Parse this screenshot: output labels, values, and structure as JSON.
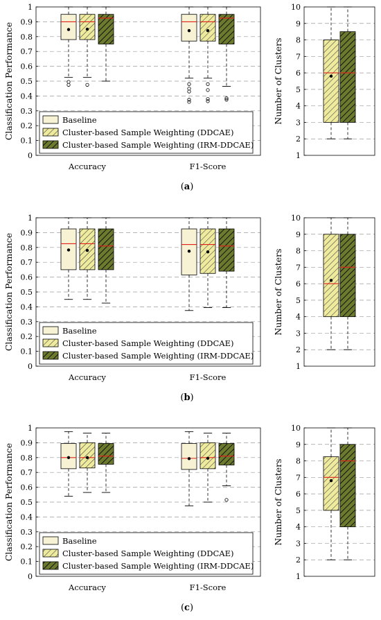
{
  "styles": [
    {
      "fill": "#f7f2d4",
      "hatch": null
    },
    {
      "fill": "#eeea9e",
      "hatch": "#3a3a3a"
    },
    {
      "fill": "#6b7a2c",
      "hatch": "#111111"
    }
  ],
  "chart_data": [
    {
      "panel": "(a)",
      "type": "box",
      "ylabel": "Classification Performance",
      "ylim": [
        0,
        1
      ],
      "yticks": [
        "0",
        "0.1",
        "0.2",
        "0.3",
        "0.4",
        "0.5",
        "0.6",
        "0.7",
        "0.8",
        "0.9",
        "1"
      ],
      "categories": [
        "Accuracy",
        "F1-Score"
      ],
      "legend": [
        "Baseline",
        "Cluster-based Sample Weighting (DDCAE)",
        "Cluster-based Sample Weighting (IRM-DDCAE)"
      ],
      "series": [
        {
          "name": "Baseline",
          "boxes": [
            {
              "min": 0.525,
              "q1": 0.78,
              "median": 0.9,
              "q3": 0.95,
              "max": 1.0,
              "mean": 0.848,
              "outliers": [
                0.495,
                0.475
              ]
            },
            {
              "min": 0.52,
              "q1": 0.77,
              "median": 0.9,
              "q3": 0.95,
              "max": 1.0,
              "mean": 0.84,
              "outliers": [
                0.48,
                0.45,
                0.43,
                0.375,
                0.36
              ]
            }
          ]
        },
        {
          "name": "Cluster-based Sample Weighting (DDCAE)",
          "boxes": [
            {
              "min": 0.525,
              "q1": 0.78,
              "median": 0.9,
              "q3": 0.95,
              "max": 1.0,
              "mean": 0.85,
              "outliers": [
                0.475
              ]
            },
            {
              "min": 0.52,
              "q1": 0.77,
              "median": 0.9,
              "q3": 0.95,
              "max": 1.0,
              "mean": 0.84,
              "outliers": [
                0.48,
                0.44,
                0.38,
                0.365
              ]
            }
          ]
        },
        {
          "name": "Cluster-based Sample Weighting (IRM-DDCAE)",
          "boxes": [
            {
              "min": 0.5,
              "q1": 0.75,
              "median": 0.925,
              "q3": 0.95,
              "max": 1.0,
              "mean": null,
              "outliers": []
            },
            {
              "min": 0.465,
              "q1": 0.75,
              "median": 0.925,
              "q3": 0.95,
              "max": 1.0,
              "mean": null,
              "outliers": [
                0.385,
                0.375
              ]
            }
          ]
        }
      ]
    },
    {
      "panel": "(a)",
      "type": "box",
      "ylabel": "Number of Clusters",
      "ylim": [
        1,
        10
      ],
      "yticks": [
        "1",
        "2",
        "3",
        "4",
        "5",
        "6",
        "7",
        "8",
        "9",
        "10"
      ],
      "series": [
        {
          "name": "Cluster-based Sample Weighting (DDCAE)",
          "boxes": [
            {
              "min": 2,
              "q1": 3,
              "median": 6,
              "q3": 8,
              "max": 10,
              "mean": 5.8,
              "outliers": []
            }
          ]
        },
        {
          "name": "Cluster-based Sample Weighting (IRM-DDCAE)",
          "boxes": [
            {
              "min": 2,
              "q1": 3,
              "median": 6,
              "q3": 8.5,
              "max": 10,
              "mean": null,
              "outliers": []
            }
          ]
        }
      ]
    },
    {
      "panel": "(b)",
      "type": "box",
      "ylabel": "Classification Performance",
      "ylim": [
        0,
        1
      ],
      "yticks": [
        "0",
        "0.1",
        "0.2",
        "0.3",
        "0.4",
        "0.5",
        "0.6",
        "0.7",
        "0.8",
        "0.9",
        "1"
      ],
      "categories": [
        "Accuracy",
        "F1-Score"
      ],
      "legend": [
        "Baseline",
        "Cluster-based Sample Weighting (DDCAE)",
        "Cluster-based Sample Weighting (IRM-DDCAE)"
      ],
      "series": [
        {
          "name": "Baseline",
          "boxes": [
            {
              "min": 0.45,
              "q1": 0.65,
              "median": 0.825,
              "q3": 0.925,
              "max": 1.0,
              "mean": 0.783,
              "outliers": []
            },
            {
              "min": 0.375,
              "q1": 0.615,
              "median": 0.82,
              "q3": 0.925,
              "max": 1.0,
              "mean": 0.775,
              "outliers": []
            }
          ]
        },
        {
          "name": "Cluster-based Sample Weighting (DDCAE)",
          "boxes": [
            {
              "min": 0.45,
              "q1": 0.65,
              "median": 0.825,
              "q3": 0.925,
              "max": 1.0,
              "mean": 0.78,
              "outliers": []
            },
            {
              "min": 0.395,
              "q1": 0.625,
              "median": 0.82,
              "q3": 0.925,
              "max": 1.0,
              "mean": 0.77,
              "outliers": []
            }
          ]
        },
        {
          "name": "Cluster-based Sample Weighting (IRM-DDCAE)",
          "boxes": [
            {
              "min": 0.425,
              "q1": 0.65,
              "median": 0.81,
              "q3": 0.925,
              "max": 1.0,
              "mean": null,
              "outliers": []
            },
            {
              "min": 0.395,
              "q1": 0.64,
              "median": 0.81,
              "q3": 0.925,
              "max": 1.0,
              "mean": null,
              "outliers": []
            }
          ]
        }
      ]
    },
    {
      "panel": "(b)",
      "type": "box",
      "ylabel": "Number of Clusters",
      "ylim": [
        1,
        10
      ],
      "yticks": [
        "1",
        "2",
        "3",
        "4",
        "5",
        "6",
        "7",
        "8",
        "9",
        "10"
      ],
      "series": [
        {
          "name": "Cluster-based Sample Weighting (DDCAE)",
          "boxes": [
            {
              "min": 2,
              "q1": 4,
              "median": 6,
              "q3": 9,
              "max": 10,
              "mean": 6.2,
              "outliers": []
            }
          ]
        },
        {
          "name": "Cluster-based Sample Weighting (IRM-DDCAE)",
          "boxes": [
            {
              "min": 2,
              "q1": 4,
              "median": 7,
              "q3": 9,
              "max": 10,
              "mean": null,
              "outliers": []
            }
          ]
        }
      ]
    },
    {
      "panel": "(c)",
      "type": "box",
      "ylabel": "Classification Performance",
      "ylim": [
        0,
        1
      ],
      "yticks": [
        "0",
        "0.1",
        "0.2",
        "0.3",
        "0.4",
        "0.5",
        "0.6",
        "0.7",
        "0.8",
        "0.9",
        "1"
      ],
      "categories": [
        "Accuracy",
        "F1-Score"
      ],
      "legend": [
        "Baseline",
        "Cluster-based Sample Weighting (DDCAE)",
        "Cluster-based Sample Weighting (IRM-DDCAE)"
      ],
      "series": [
        {
          "name": "Baseline",
          "boxes": [
            {
              "min": 0.54,
              "q1": 0.725,
              "median": 0.8,
              "q3": 0.895,
              "max": 0.975,
              "mean": 0.8,
              "outliers": []
            },
            {
              "min": 0.475,
              "q1": 0.72,
              "median": 0.795,
              "q3": 0.895,
              "max": 0.975,
              "mean": 0.793,
              "outliers": []
            }
          ]
        },
        {
          "name": "Cluster-based Sample Weighting (DDCAE)",
          "boxes": [
            {
              "min": 0.565,
              "q1": 0.73,
              "median": 0.8,
              "q3": 0.9,
              "max": 0.965,
              "mean": 0.8,
              "outliers": []
            },
            {
              "min": 0.5,
              "q1": 0.725,
              "median": 0.8,
              "q3": 0.9,
              "max": 0.965,
              "mean": 0.795,
              "outliers": []
            }
          ]
        },
        {
          "name": "Cluster-based Sample Weighting (IRM-DDCAE)",
          "boxes": [
            {
              "min": 0.565,
              "q1": 0.755,
              "median": 0.81,
              "q3": 0.895,
              "max": 0.965,
              "mean": null,
              "outliers": []
            },
            {
              "min": 0.61,
              "q1": 0.75,
              "median": 0.81,
              "q3": 0.895,
              "max": 0.965,
              "mean": null,
              "outliers": [
                0.515
              ]
            }
          ]
        }
      ]
    },
    {
      "panel": "(c)",
      "type": "box",
      "ylabel": "Number of Clusters",
      "ylim": [
        1,
        10
      ],
      "yticks": [
        "1",
        "2",
        "3",
        "4",
        "5",
        "6",
        "7",
        "8",
        "9",
        "10"
      ],
      "series": [
        {
          "name": "Cluster-based Sample Weighting (DDCAE)",
          "boxes": [
            {
              "min": 2,
              "q1": 5,
              "median": 7,
              "q3": 8.25,
              "max": 10,
              "mean": 6.8,
              "outliers": []
            }
          ]
        },
        {
          "name": "Cluster-based Sample Weighting (IRM-DDCAE)",
          "boxes": [
            {
              "min": 2,
              "q1": 4,
              "median": 8,
              "q3": 9,
              "max": 10,
              "mean": null,
              "outliers": []
            }
          ]
        }
      ]
    }
  ]
}
